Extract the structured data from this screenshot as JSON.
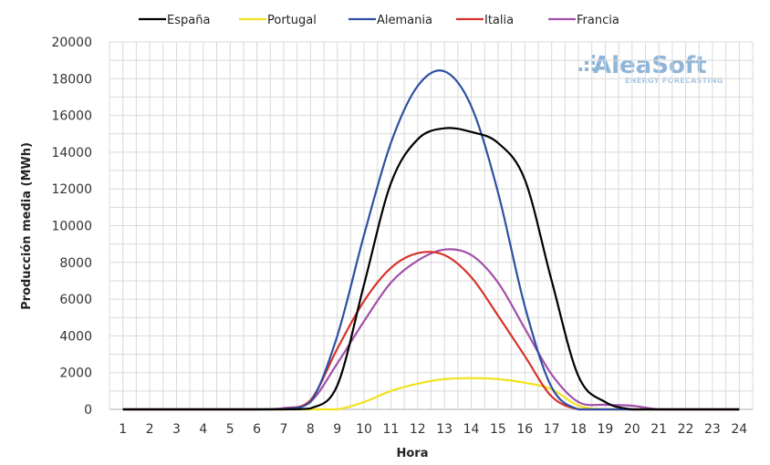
{
  "logo": {
    "name": "AleaSoft",
    "tagline": "ENERGY FORECASTING"
  },
  "chart_data": {
    "type": "line",
    "title": "",
    "xlabel": "Hora",
    "ylabel": "Producción media (MWh)",
    "x": [
      1,
      2,
      3,
      4,
      5,
      6,
      7,
      8,
      9,
      10,
      11,
      12,
      13,
      14,
      15,
      16,
      17,
      18,
      19,
      20,
      21,
      22,
      23,
      24
    ],
    "xlim": [
      1,
      24
    ],
    "ylim": [
      0,
      20000
    ],
    "yticks": [
      "0",
      "2000",
      "4000",
      "6000",
      "8000",
      "10000",
      "12000",
      "14000",
      "16000",
      "18000",
      "20000"
    ],
    "xticks": [
      "1",
      "2",
      "3",
      "4",
      "5",
      "6",
      "7",
      "8",
      "9",
      "10",
      "11",
      "12",
      "13",
      "14",
      "15",
      "16",
      "17",
      "18",
      "19",
      "20",
      "21",
      "22",
      "23",
      "24"
    ],
    "grid": true,
    "legend_position": "top",
    "series": [
      {
        "name": "España",
        "color": "#000000",
        "values": [
          0,
          0,
          0,
          0,
          0,
          0,
          0,
          50,
          1300,
          6800,
          12300,
          14700,
          15300,
          15100,
          14500,
          12500,
          7000,
          1800,
          400,
          0,
          0,
          0,
          0,
          0
        ]
      },
      {
        "name": "Portugal",
        "color": "#f2e21e",
        "values": [
          0,
          0,
          0,
          0,
          0,
          0,
          0,
          0,
          0,
          400,
          1000,
          1400,
          1650,
          1700,
          1650,
          1450,
          1100,
          200,
          0,
          0,
          0,
          0,
          0,
          0
        ]
      },
      {
        "name": "Alemania",
        "color": "#2e4fa3",
        "values": [
          0,
          0,
          0,
          0,
          0,
          0,
          20,
          400,
          4000,
          9500,
          14500,
          17600,
          18400,
          16500,
          11800,
          5600,
          1200,
          0,
          0,
          0,
          0,
          0,
          0,
          0
        ]
      },
      {
        "name": "Italia",
        "color": "#d9312b",
        "values": [
          0,
          0,
          0,
          0,
          0,
          0,
          30,
          500,
          3300,
          5900,
          7700,
          8500,
          8400,
          7200,
          5100,
          2900,
          700,
          0,
          0,
          0,
          0,
          0,
          0,
          0
        ]
      },
      {
        "name": "Francia",
        "color": "#a24fa9",
        "values": [
          0,
          0,
          0,
          0,
          0,
          0,
          70,
          420,
          2500,
          4800,
          6900,
          8100,
          8700,
          8400,
          6900,
          4400,
          1900,
          400,
          250,
          200,
          0,
          0,
          0,
          0
        ]
      }
    ]
  }
}
